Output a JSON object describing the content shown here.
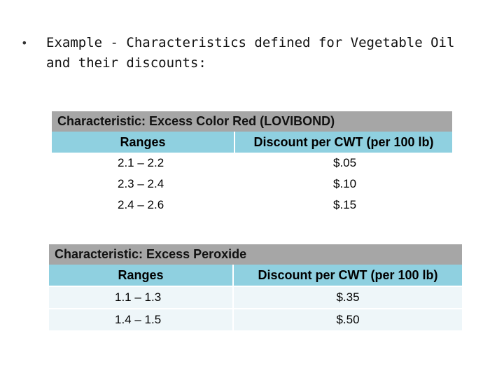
{
  "slide": {
    "bullet": "•",
    "intro": "Example - Characteristics defined for Vegetable Oil and their discounts:"
  },
  "tables": [
    {
      "title": "Characteristic: Excess Color Red (LOVIBOND)",
      "headers": [
        "Ranges",
        "Discount per CWT (per 100 lb)"
      ],
      "rows": [
        [
          "2.1 – 2.2",
          "$.05"
        ],
        [
          "2.3 – 2.4",
          "$.10"
        ],
        [
          "2.4 – 2.6",
          "$.15"
        ]
      ]
    },
    {
      "title": "Characteristic: Excess Peroxide",
      "headers": [
        "Ranges",
        "Discount per CWT (per 100 lb)"
      ],
      "rows": [
        [
          "1.1 – 1.3",
          "$.35"
        ],
        [
          "1.4 – 1.5",
          "$.50"
        ]
      ]
    }
  ],
  "colors": {
    "title_band": "#a6a6a6",
    "header_band": "#8fd0e0",
    "row_tint": "#eef6f9"
  }
}
